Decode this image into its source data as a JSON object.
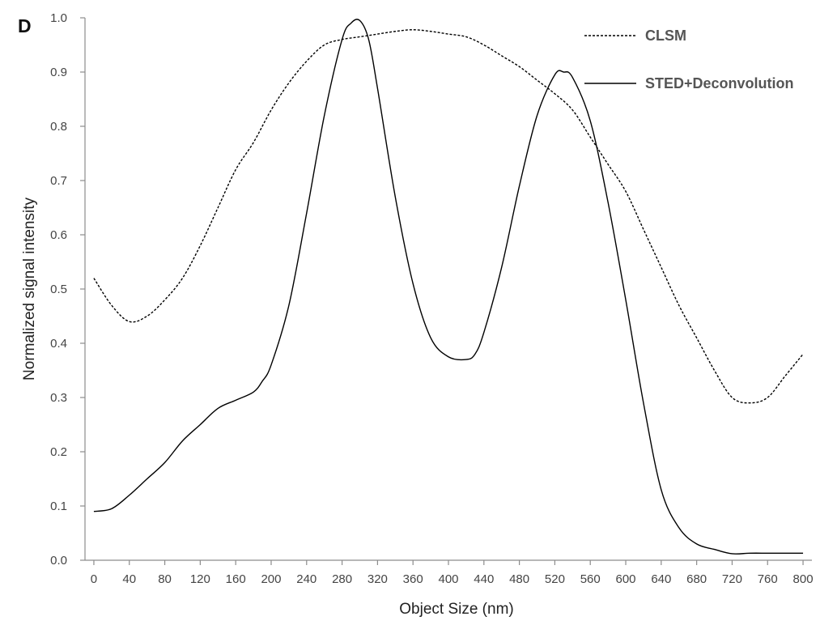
{
  "chart_data": {
    "type": "line",
    "panel_label": "D",
    "xlabel": "Object Size (nm)",
    "ylabel": "Normalized signal intensity",
    "xlim": [
      -10,
      810
    ],
    "ylim": [
      0.0,
      1.0
    ],
    "x_ticks": [
      "0",
      "40",
      "80",
      "120",
      "160",
      "200",
      "240",
      "280",
      "320",
      "360",
      "400",
      "440",
      "480",
      "520",
      "560",
      "600",
      "640",
      "680",
      "720",
      "760",
      "800"
    ],
    "y_ticks": [
      "0.0",
      "0.1",
      "0.2",
      "0.3",
      "0.4",
      "0.5",
      "0.6",
      "0.7",
      "0.8",
      "0.9",
      "1.0"
    ],
    "grid": false,
    "legend_position": "top-right",
    "series": [
      {
        "name": "CLSM",
        "style": "dashed",
        "color": "#000000",
        "x": [
          0,
          20,
          40,
          60,
          80,
          100,
          120,
          140,
          160,
          180,
          200,
          220,
          240,
          260,
          280,
          300,
          320,
          340,
          360,
          380,
          400,
          420,
          440,
          460,
          480,
          500,
          520,
          540,
          560,
          580,
          600,
          620,
          640,
          660,
          680,
          700,
          720,
          740,
          760,
          780,
          800
        ],
        "y": [
          0.52,
          0.47,
          0.44,
          0.45,
          0.48,
          0.52,
          0.58,
          0.65,
          0.72,
          0.77,
          0.83,
          0.88,
          0.92,
          0.95,
          0.96,
          0.965,
          0.97,
          0.975,
          0.978,
          0.975,
          0.97,
          0.965,
          0.95,
          0.93,
          0.91,
          0.885,
          0.86,
          0.83,
          0.78,
          0.73,
          0.68,
          0.61,
          0.54,
          0.47,
          0.41,
          0.35,
          0.3,
          0.29,
          0.3,
          0.34,
          0.38
        ]
      },
      {
        "name": "STED+Deconvolution",
        "style": "solid",
        "color": "#000000",
        "x": [
          0,
          20,
          40,
          60,
          80,
          100,
          120,
          140,
          160,
          180,
          190,
          200,
          220,
          240,
          260,
          280,
          290,
          300,
          310,
          320,
          340,
          360,
          380,
          400,
          420,
          430,
          440,
          460,
          480,
          500,
          520,
          530,
          540,
          560,
          580,
          600,
          620,
          640,
          660,
          680,
          700,
          720,
          740,
          760,
          780,
          800
        ],
        "y": [
          0.09,
          0.095,
          0.12,
          0.15,
          0.18,
          0.22,
          0.25,
          0.28,
          0.295,
          0.31,
          0.33,
          0.36,
          0.47,
          0.64,
          0.82,
          0.96,
          0.99,
          0.995,
          0.96,
          0.87,
          0.67,
          0.51,
          0.41,
          0.375,
          0.37,
          0.38,
          0.42,
          0.54,
          0.69,
          0.82,
          0.895,
          0.9,
          0.89,
          0.81,
          0.66,
          0.48,
          0.29,
          0.13,
          0.06,
          0.03,
          0.02,
          0.012,
          0.013,
          0.013,
          0.013,
          0.013
        ]
      }
    ]
  }
}
